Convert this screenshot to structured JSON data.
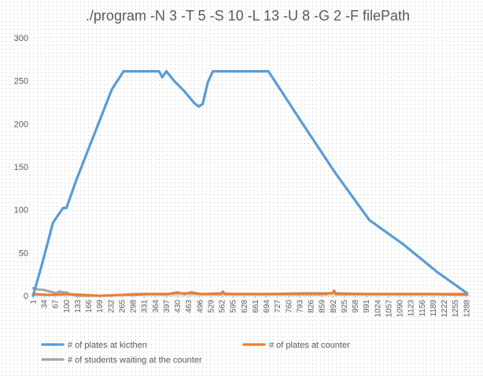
{
  "chart_data": {
    "type": "line",
    "title": "./program -N 3 -T 5 -S 10 -L 13 -U 8 -G 2 -F filePath",
    "xlabel": "",
    "ylabel": "",
    "ylim": [
      0,
      300
    ],
    "yticks": [
      0,
      50,
      100,
      150,
      200,
      250,
      300
    ],
    "xlim": [
      1,
      1300
    ],
    "xtick_labels": [
      "1",
      "34",
      "67",
      "100",
      "133",
      "166",
      "199",
      "232",
      "265",
      "298",
      "331",
      "364",
      "397",
      "430",
      "463",
      "496",
      "529",
      "562",
      "595",
      "628",
      "661",
      "694",
      "727",
      "760",
      "793",
      "826",
      "859",
      "892",
      "925",
      "958",
      "991",
      "1024",
      "1057",
      "1090",
      "1123",
      "1156",
      "1189",
      "1222",
      "1255",
      "1288"
    ],
    "grid": false,
    "legend_position": "bottom",
    "colors": {
      "kitchen": "#5b9bd5",
      "counter": "#ed7d31",
      "students": "#a5a5a5",
      "axis": "#bfbfbf",
      "text": "#595959"
    },
    "series": [
      {
        "name": "# of plates at kicthen",
        "color": "#5b9bd5",
        "x": [
          1,
          30,
          60,
          90,
          100,
          130,
          165,
          200,
          235,
          270,
          300,
          330,
          360,
          375,
          385,
          397,
          420,
          450,
          480,
          493,
          505,
          520,
          535,
          560,
          600,
          640,
          690,
          700,
          800,
          900,
          1000,
          1100,
          1200,
          1290
        ],
        "y": [
          0,
          40,
          85,
          102,
          102,
          135,
          170,
          205,
          240,
          261,
          261,
          261,
          261,
          261,
          254,
          261,
          250,
          238,
          224,
          220,
          223,
          248,
          261,
          261,
          261,
          261,
          261,
          261,
          201,
          142,
          88,
          60,
          28,
          3
        ]
      },
      {
        "name": "# of plates at counter",
        "color": "#ed7d31",
        "x": [
          1,
          50,
          100,
          200,
          270,
          300,
          330,
          400,
          430,
          450,
          470,
          500,
          560,
          565,
          570,
          700,
          800,
          870,
          890,
          895,
          900,
          1000,
          1100,
          1200,
          1290
        ],
        "y": [
          2,
          1,
          2,
          0,
          1,
          1,
          2,
          2,
          4,
          2,
          4,
          2,
          2,
          5,
          2,
          2,
          2,
          2,
          3,
          6,
          2,
          2,
          2,
          2,
          2
        ]
      },
      {
        "name": "# of students waiting at the counter",
        "color": "#a5a5a5",
        "x": [
          1,
          10,
          20,
          30,
          40,
          50,
          60,
          70,
          80,
          90,
          100,
          110,
          130,
          200,
          270,
          300,
          400,
          450,
          500,
          560,
          600,
          700,
          800,
          850,
          900,
          1000,
          1100,
          1200,
          1290
        ],
        "y": [
          9,
          8,
          7,
          7,
          6,
          5,
          4,
          3,
          5,
          4,
          4,
          2,
          0,
          0,
          1,
          2,
          2,
          3,
          2,
          3,
          2,
          2,
          3,
          3,
          3,
          2,
          2,
          2,
          1
        ]
      }
    ]
  }
}
